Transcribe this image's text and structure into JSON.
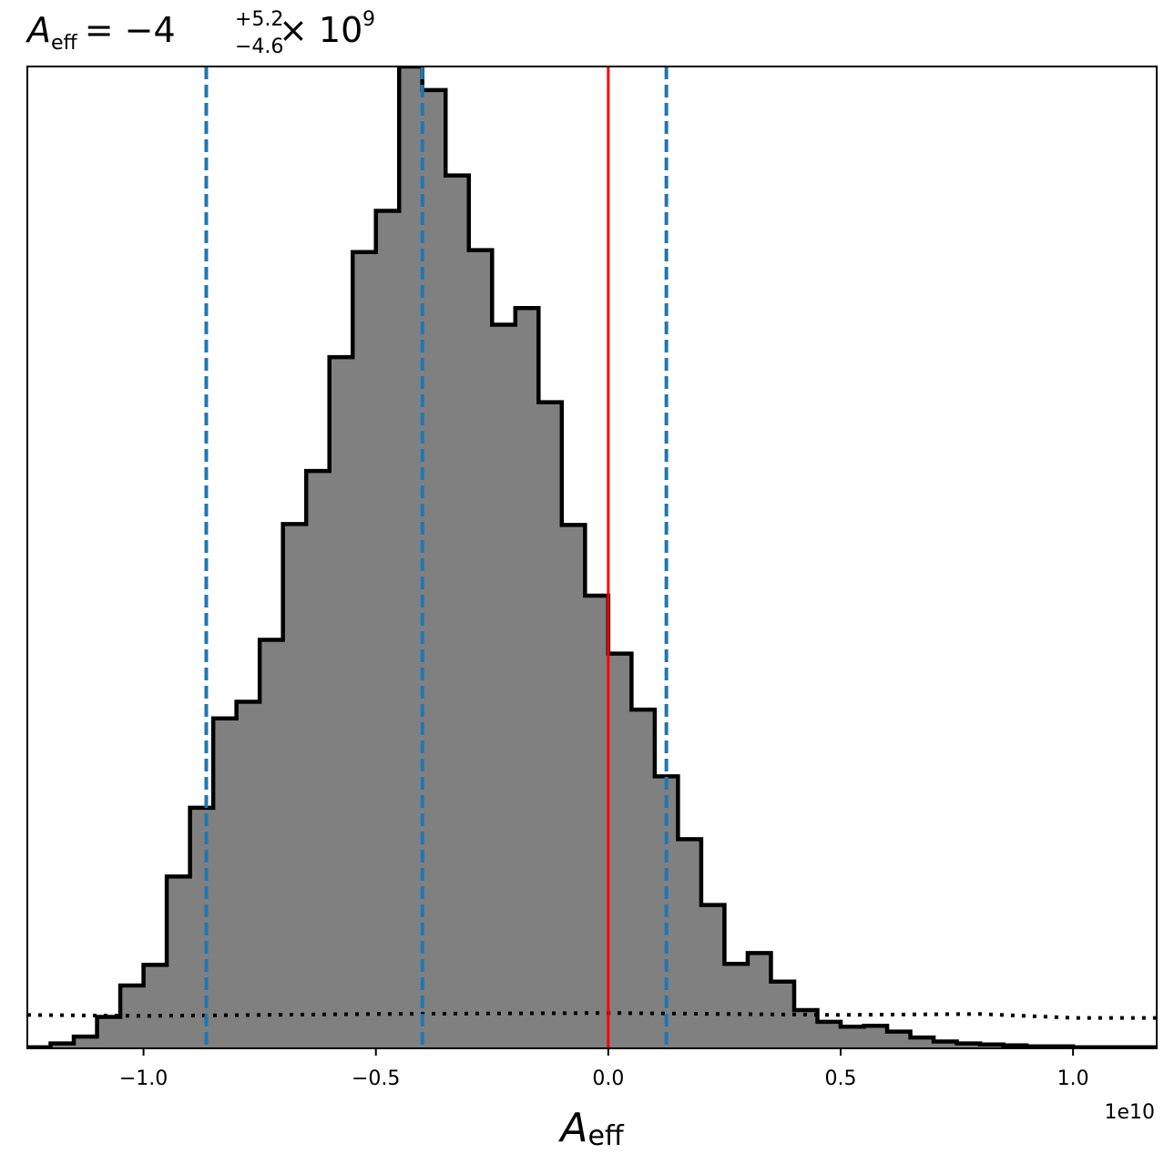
{
  "chart_data": {
    "type": "histogram",
    "title": {
      "symbol": "A",
      "subscript": "eff",
      "value": "= −4",
      "upper": "+5.2",
      "lower": "−4.6",
      "factor": "× 10",
      "exponent": "9"
    },
    "xlabel": {
      "symbol": "A",
      "subscript": "eff"
    },
    "x_offset_label": "1e10",
    "x_scale": 10000000000,
    "xlim": [
      -1.25,
      1.18
    ],
    "ylim": [
      0,
      1.0
    ],
    "xticks": [
      -1.0,
      -0.5,
      0.0,
      0.5,
      1.0
    ],
    "xtick_labels": [
      "−1.0",
      "−0.5",
      "0.0",
      "0.5",
      "1.0"
    ],
    "show_y_ticks": false,
    "grid": false,
    "bin_edges": [
      -1.25,
      -1.2,
      -1.15,
      -1.1,
      -1.05,
      -1.0,
      -0.95,
      -0.9,
      -0.85,
      -0.8,
      -0.75,
      -0.7,
      -0.65,
      -0.6,
      -0.55,
      -0.5,
      -0.45,
      -0.4,
      -0.35,
      -0.3,
      -0.25,
      -0.2,
      -0.15,
      -0.1,
      -0.05,
      0.0,
      0.05,
      0.1,
      0.15,
      0.2,
      0.25,
      0.3,
      0.35,
      0.4,
      0.45,
      0.5,
      0.55,
      0.6,
      0.65,
      0.7,
      0.75,
      0.8,
      0.85,
      0.9,
      0.95,
      1.0,
      1.05,
      1.1,
      1.15,
      1.18
    ],
    "bin_heights": [
      0.001,
      0.005,
      0.012,
      0.032,
      0.064,
      0.085,
      0.175,
      0.245,
      0.336,
      0.353,
      0.416,
      0.534,
      0.588,
      0.704,
      0.811,
      0.853,
      1.0,
      0.976,
      0.889,
      0.813,
      0.737,
      0.754,
      0.658,
      0.533,
      0.461,
      0.402,
      0.345,
      0.277,
      0.213,
      0.146,
      0.086,
      0.097,
      0.068,
      0.039,
      0.027,
      0.022,
      0.023,
      0.017,
      0.011,
      0.007,
      0.005,
      0.004,
      0.003,
      0.002,
      0.002,
      0.001,
      0.001,
      0.001,
      0.001
    ],
    "hist_fill": "#808080",
    "hist_edge": "#000000",
    "quantile_lines": {
      "x": [
        -0.865,
        -0.4,
        0.125
      ],
      "color": "#1f77b4",
      "style": "dashed"
    },
    "reference_line": {
      "x": 0.0,
      "color": "#ff0000",
      "style": "solid"
    },
    "prior_line": {
      "color": "#000000",
      "style": "dotted",
      "points": [
        [
          -1.25,
          0.034
        ],
        [
          -1.0,
          0.033
        ],
        [
          -0.5,
          0.035
        ],
        [
          0.0,
          0.036
        ],
        [
          0.5,
          0.034
        ],
        [
          0.8,
          0.035
        ],
        [
          1.0,
          0.031
        ],
        [
          1.18,
          0.031
        ]
      ]
    }
  }
}
